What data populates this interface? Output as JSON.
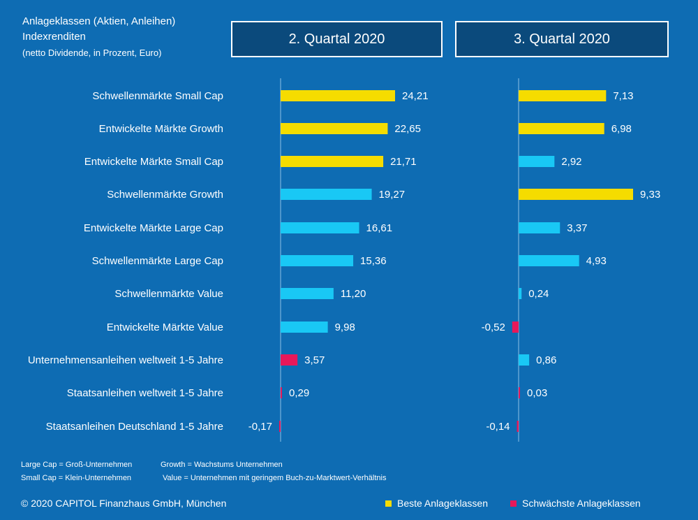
{
  "header": {
    "title_line1": "Anlageklassen (Aktien, Anleihen)",
    "title_line2": "Indexrenditen",
    "title_line3": "(netto Dividende, in Prozent, Euro)"
  },
  "colors": {
    "background": "#0e6cb3",
    "header_box": "#0b4a7c",
    "best": "#f5dc00",
    "neutral": "#19c8f5",
    "worst": "#e8185a",
    "axis": "#8fbfe6"
  },
  "chart_data": {
    "type": "bar",
    "orientation": "horizontal",
    "categories": [
      "Schwellenmärkte Small Cap",
      "Entwickelte Märkte Growth",
      "Entwickelte Märkte Small Cap",
      "Schwellenmärkte Growth",
      "Entwickelte Märkte Large Cap",
      "Schwellenmärkte Large Cap",
      "Schwellenmärkte Value",
      "Entwickelte Märkte Value",
      "Unternehmensanleihen weltweit 1-5 Jahre",
      "Staatsanleihen weltweit 1-5 Jahre",
      "Staatsanleihen Deutschland 1-5 Jahre"
    ],
    "panels": [
      {
        "title": "2. Quartal 2020",
        "values": [
          24.21,
          22.65,
          21.71,
          19.27,
          16.61,
          15.36,
          11.2,
          9.98,
          3.57,
          0.29,
          -0.17
        ],
        "labels": [
          "24,21",
          "22,65",
          "21,71",
          "19,27",
          "16,61",
          "15,36",
          "11,20",
          "9,98",
          "3,57",
          "0,29",
          "-0,17"
        ],
        "classes": [
          "best",
          "best",
          "best",
          "neutral",
          "neutral",
          "neutral",
          "neutral",
          "neutral",
          "worst",
          "worst",
          "worst"
        ]
      },
      {
        "title": "3. Quartal 2020",
        "values": [
          7.13,
          6.98,
          2.92,
          9.33,
          3.37,
          4.93,
          0.24,
          -0.52,
          0.86,
          0.03,
          -0.14
        ],
        "labels": [
          "7,13",
          "6,98",
          "2,92",
          "9,33",
          "3,37",
          "4,93",
          "0,24",
          "-0,52",
          "0,86",
          "0,03",
          "-0,14"
        ],
        "classes": [
          "best",
          "best",
          "neutral",
          "best",
          "neutral",
          "neutral",
          "neutral",
          "worst",
          "neutral",
          "worst",
          "worst"
        ]
      }
    ],
    "legend": [
      {
        "label": "Beste Anlageklassen",
        "class": "best"
      },
      {
        "label": "Schwächste Anlageklassen",
        "class": "worst"
      }
    ]
  },
  "footnotes": {
    "line1_left": "Large Cap = Groß-Unternehmen",
    "line1_right": "Growth = Wachstums Unternehmen",
    "line2_left": "Small Cap = Klein-Unternehmen",
    "line2_right": "Value = Unternehmen mit geringem Buch-zu-Marktwert-Verhältnis"
  },
  "copyright": "© 2020 CAPITOL Finanzhaus GmbH, München"
}
